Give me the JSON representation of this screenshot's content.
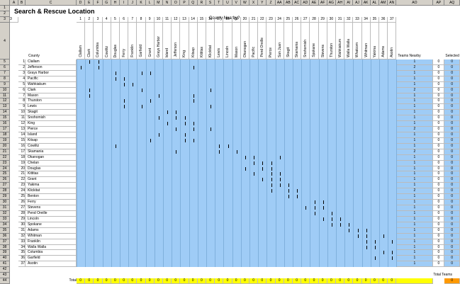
{
  "title": "Search & Rescue Location",
  "county_header": "County Nearby?",
  "county_label": "County",
  "teams_nearby_label": "Teams Nearby",
  "selected_label": "Selected",
  "total_label": "Total",
  "total_teams_label": "Total Teams",
  "total_teams_value": "0",
  "col_letters": [
    "A",
    "B",
    "C",
    "D",
    "E",
    "F",
    "G",
    "H",
    "I",
    "J",
    "K",
    "L",
    "M",
    "N",
    "O",
    "P",
    "Q",
    "R",
    "S",
    "T",
    "U",
    "V",
    "W",
    "X",
    "Y",
    "Z",
    "AA",
    "AB",
    "AC",
    "AD",
    "AE",
    "AF",
    "AG",
    "AH",
    "AI",
    "AJ",
    "AK",
    "AL",
    "AM",
    "AN",
    "AO",
    "AP",
    "AQ"
  ],
  "col_numbers": [
    "1",
    "2",
    "3",
    "4",
    "5",
    "6",
    "7",
    "8",
    "9",
    "10",
    "11",
    "12",
    "13",
    "14",
    "15",
    "16",
    "17",
    "18",
    "19",
    "20",
    "21",
    "22",
    "23",
    "24",
    "25",
    "26",
    "27",
    "28",
    "29",
    "30",
    "31",
    "32",
    "33",
    "34",
    "35",
    "36",
    "37"
  ],
  "county_cols": [
    "Clallam",
    "Clark",
    "Columbia",
    "Cowlitz",
    "Douglas",
    "Ferry",
    "Franklin",
    "Garfield",
    "Grant",
    "Grays Harbor",
    "Island",
    "Jefferson",
    "King",
    "Kitsap",
    "Kittitas",
    "Klickitat",
    "Lewis",
    "Lincoln",
    "Mason",
    "Okanogan",
    "Pacific",
    "Pend Oreille",
    "Pierce",
    "San Juan",
    "Skagit",
    "Skamania",
    "Snohomish",
    "Spokane",
    "Stevens",
    "Thurston",
    "Wahkiakum",
    "Walla Walla",
    "Whatcom",
    "Whitman",
    "Yakima",
    "Adams",
    "Asotin"
  ],
  "rows": [
    {
      "n": "1",
      "county": "Clallam"
    },
    {
      "n": "2",
      "county": "Jefferson"
    },
    {
      "n": "3",
      "county": "Grays Harbor"
    },
    {
      "n": "4",
      "county": "Pacific"
    },
    {
      "n": "5",
      "county": "Wahkiakum"
    },
    {
      "n": "6",
      "county": "Clark"
    },
    {
      "n": "7",
      "county": "Mason"
    },
    {
      "n": "8",
      "county": "Thurston"
    },
    {
      "n": "9",
      "county": "Lewis"
    },
    {
      "n": "10",
      "county": "Skagit"
    },
    {
      "n": "11",
      "county": "Snohomish"
    },
    {
      "n": "12",
      "county": "King"
    },
    {
      "n": "13",
      "county": "Pierce"
    },
    {
      "n": "14",
      "county": "Island"
    },
    {
      "n": "15",
      "county": "Kitsap"
    },
    {
      "n": "16",
      "county": "Cowlitz"
    },
    {
      "n": "17",
      "county": "Skamania"
    },
    {
      "n": "18",
      "county": "Okanogan"
    },
    {
      "n": "19",
      "county": "Chelan"
    },
    {
      "n": "20",
      "county": "Douglas"
    },
    {
      "n": "21",
      "county": "Kittitas"
    },
    {
      "n": "22",
      "county": "Grant"
    },
    {
      "n": "23",
      "county": "Yakima"
    },
    {
      "n": "24",
      "county": "Klickitat"
    },
    {
      "n": "25",
      "county": "Benton"
    },
    {
      "n": "26",
      "county": "Ferry"
    },
    {
      "n": "27",
      "county": "Stevens"
    },
    {
      "n": "28",
      "county": "Pend Oreille"
    },
    {
      "n": "29",
      "county": "Lincoln"
    },
    {
      "n": "30",
      "county": "Spokane"
    },
    {
      "n": "31",
      "county": "Adams"
    },
    {
      "n": "32",
      "county": "Whitman"
    },
    {
      "n": "33",
      "county": "Franklin"
    },
    {
      "n": "34",
      "county": "Walla Walla"
    },
    {
      "n": "35",
      "county": "Columbia"
    },
    {
      "n": "36",
      "county": "Garfield"
    },
    {
      "n": "37",
      "county": "Asotin"
    }
  ],
  "teams": [
    "1",
    "2",
    "1",
    "1",
    "1",
    "2",
    "1",
    "1",
    "1",
    "1",
    "1",
    "1",
    "2",
    "1",
    "1",
    "1",
    "2",
    "1",
    "1",
    "1",
    "1",
    "1",
    "1",
    "2",
    "1",
    "1",
    "1",
    "1",
    "1",
    "1",
    "1",
    "1",
    "1",
    "1",
    "1",
    "1",
    "1"
  ],
  "selected": "0",
  "totals_row": [
    "0",
    "0",
    "0",
    "0",
    "0",
    "0",
    "0",
    "0",
    "0",
    "0",
    "0",
    "0",
    "0",
    "0",
    "0",
    "0",
    "0",
    "0",
    "0",
    "0",
    "0",
    "0",
    "0",
    "0",
    "0",
    "0",
    "0",
    "0",
    "0",
    "0",
    "0",
    "0",
    "0",
    "0",
    "0",
    "0",
    "0"
  ],
  "marks": [
    [
      0,
      1
    ],
    [
      0,
      2
    ],
    [
      1,
      0
    ],
    [
      1,
      2
    ],
    [
      1,
      13
    ],
    [
      2,
      4
    ],
    [
      2,
      7
    ],
    [
      2,
      8
    ],
    [
      3,
      4
    ],
    [
      3,
      5
    ],
    [
      4,
      5
    ],
    [
      4,
      6
    ],
    [
      5,
      1
    ],
    [
      5,
      7
    ],
    [
      5,
      15
    ],
    [
      6,
      1
    ],
    [
      6,
      9
    ],
    [
      6,
      13
    ],
    [
      7,
      5
    ],
    [
      7,
      8
    ],
    [
      7,
      13
    ],
    [
      8,
      5
    ],
    [
      8,
      7
    ],
    [
      8,
      15
    ],
    [
      9,
      10
    ],
    [
      9,
      11
    ],
    [
      10,
      9
    ],
    [
      10,
      11
    ],
    [
      10,
      12
    ],
    [
      11,
      10
    ],
    [
      11,
      12
    ],
    [
      11,
      13
    ],
    [
      12,
      11
    ],
    [
      12,
      13
    ],
    [
      12,
      15
    ],
    [
      13,
      9
    ],
    [
      13,
      12
    ],
    [
      14,
      8
    ],
    [
      14,
      12
    ],
    [
      14,
      13
    ],
    [
      15,
      4
    ],
    [
      15,
      17
    ],
    [
      15,
      16
    ],
    [
      16,
      11
    ],
    [
      16,
      16
    ],
    [
      16,
      18
    ],
    [
      17,
      19
    ],
    [
      17,
      20
    ],
    [
      17,
      23
    ],
    [
      18,
      20
    ],
    [
      18,
      21
    ],
    [
      18,
      22
    ],
    [
      19,
      19
    ],
    [
      19,
      21
    ],
    [
      19,
      22
    ],
    [
      20,
      20
    ],
    [
      20,
      22
    ],
    [
      20,
      23
    ],
    [
      21,
      21
    ],
    [
      21,
      22
    ],
    [
      21,
      23
    ],
    [
      22,
      22
    ],
    [
      22,
      23
    ],
    [
      22,
      24
    ],
    [
      23,
      24
    ],
    [
      23,
      22
    ],
    [
      23,
      25
    ],
    [
      24,
      24
    ],
    [
      24,
      25
    ],
    [
      25,
      27
    ],
    [
      25,
      28
    ],
    [
      26,
      26
    ],
    [
      26,
      27
    ],
    [
      26,
      28
    ],
    [
      27,
      27
    ],
    [
      27,
      29
    ],
    [
      28,
      28
    ],
    [
      28,
      29
    ],
    [
      28,
      30
    ],
    [
      29,
      29
    ],
    [
      29,
      30
    ],
    [
      29,
      31
    ],
    [
      30,
      31
    ],
    [
      30,
      32
    ],
    [
      30,
      33
    ],
    [
      31,
      32
    ],
    [
      31,
      33
    ],
    [
      31,
      35
    ],
    [
      32,
      33
    ],
    [
      32,
      34
    ],
    [
      32,
      36
    ],
    [
      33,
      33
    ],
    [
      33,
      34
    ],
    [
      34,
      35
    ],
    [
      34,
      36
    ],
    [
      35,
      36
    ],
    [
      35,
      34
    ]
  ]
}
